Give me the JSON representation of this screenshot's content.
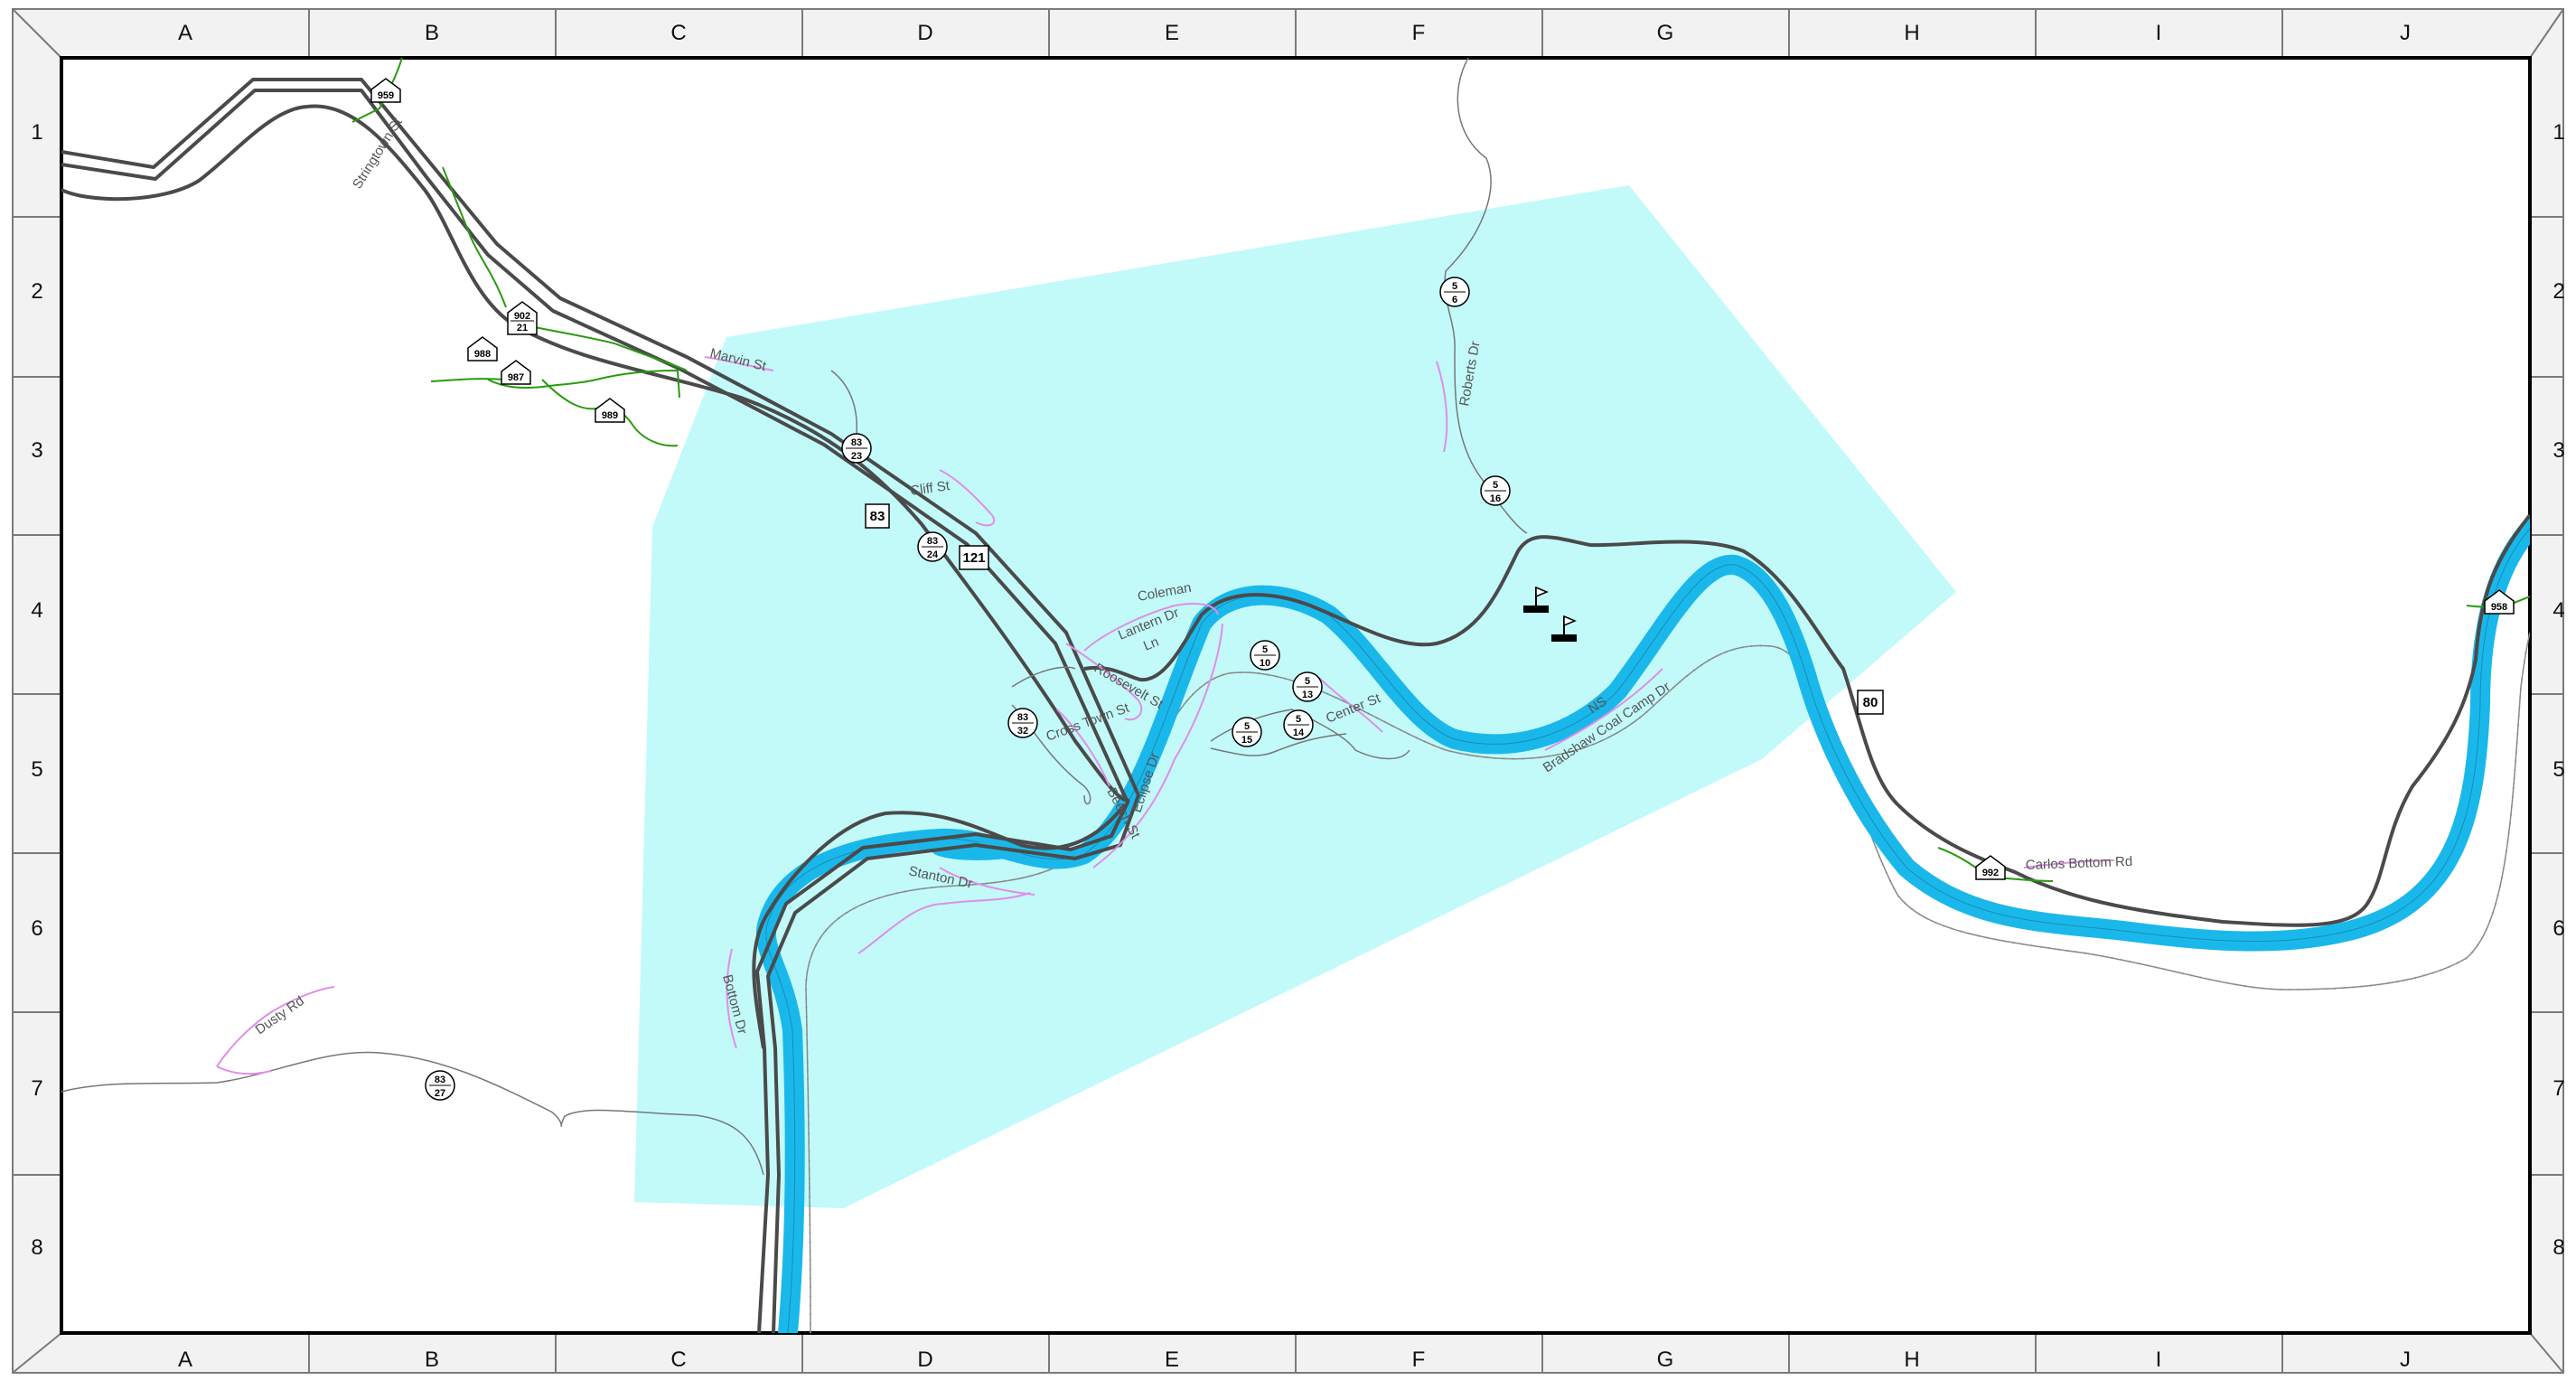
{
  "grid": {
    "columns": [
      "A",
      "B",
      "C",
      "D",
      "E",
      "F",
      "G",
      "H",
      "I",
      "J"
    ],
    "rows": [
      "1",
      "2",
      "3",
      "4",
      "5",
      "6",
      "7",
      "8"
    ]
  },
  "road_labels": {
    "stringtown_st": "Stringtown St",
    "marvin_st": "Marvin St",
    "cliff_st": "Cliff St",
    "coleman": "Coleman",
    "lantern_dr": "Lantern Dr",
    "ln": "Ln",
    "roosevelt_st": "Roosevelt St",
    "cross_town_st": "Cross Town St",
    "eclipse_dr": "Eclipse Dr",
    "beech_st": "Beech St",
    "stanton_dr": "Stanton Dr",
    "bottom_dr": "Bottom Dr",
    "center_st": "Center St",
    "roberts_dr": "Roberts Dr",
    "bradshaw_coal_camp_dr": "Bradshaw Coal Camp Dr",
    "ns": "NS",
    "carlos_bottom_rd": "Carlos Bottom Rd",
    "dusty_rd": "Dusty Rd"
  },
  "route_shields": {
    "box_83": "83",
    "box_121": "121",
    "box_80": "80",
    "house_959": "959",
    "house_902_21": [
      "902",
      "21"
    ],
    "house_988": "988",
    "house_987": "987",
    "house_989": "989",
    "house_958": "958",
    "house_992": "992",
    "circle_83_23": [
      "83",
      "23"
    ],
    "circle_83_24": [
      "83",
      "24"
    ],
    "circle_83_32": [
      "83",
      "32"
    ],
    "circle_83_27": [
      "83",
      "27"
    ],
    "circle_5_6": [
      "5",
      "6"
    ],
    "circle_5_16": [
      "5",
      "16"
    ],
    "circle_5_10": [
      "5",
      "10"
    ],
    "circle_5_13": [
      "5",
      "13"
    ],
    "circle_5_15": [
      "5",
      "15"
    ],
    "circle_5_14": [
      "5",
      "14"
    ]
  },
  "colors": {
    "river": "#1ab8ea",
    "shaded_area": "#c2fafa",
    "main_road": "#4a4a4a",
    "local_road": "#e08ee6",
    "green_road": "#2a9a10",
    "railroad": "#888888",
    "border": "#000000"
  },
  "icons": [
    "flag-icon",
    "flag-icon"
  ]
}
